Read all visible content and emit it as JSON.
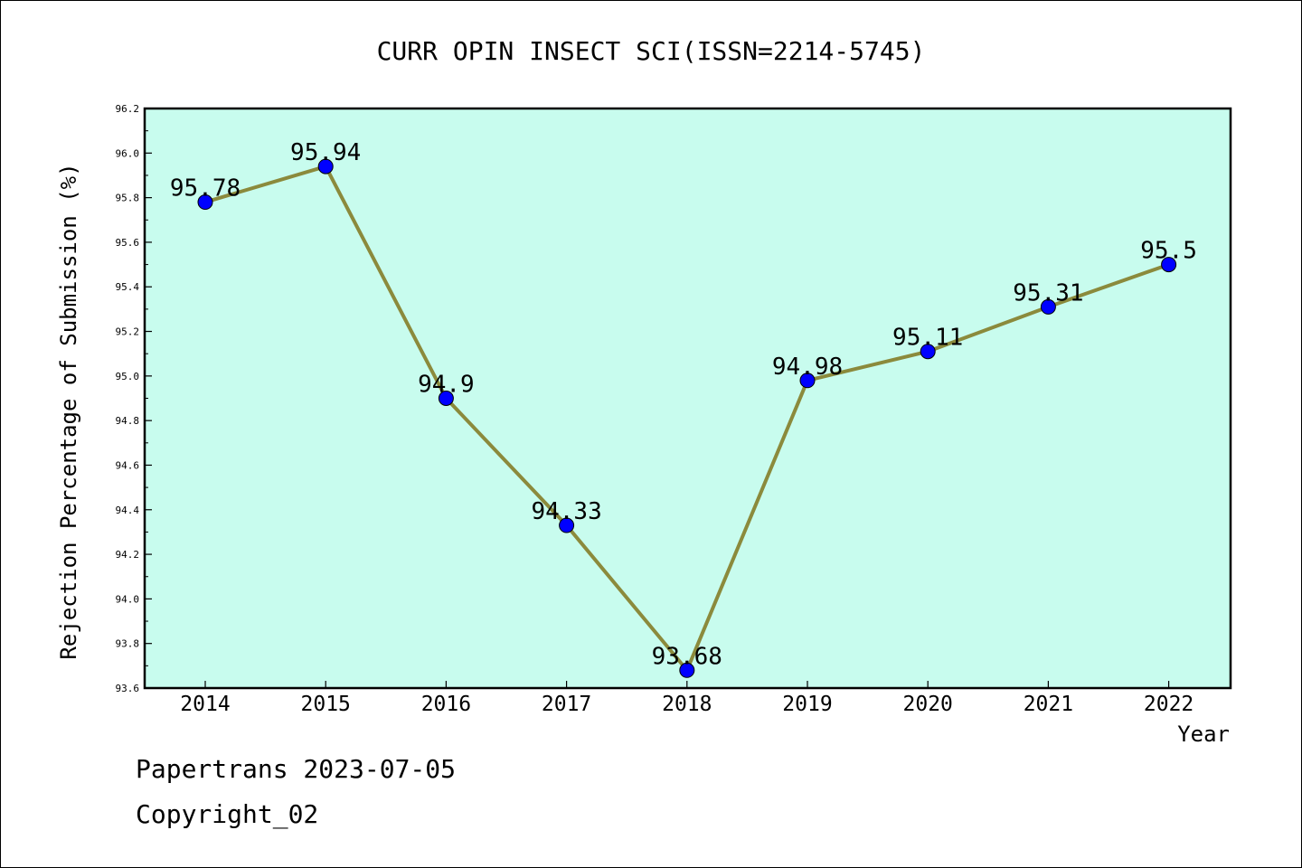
{
  "chart_data": {
    "type": "line",
    "title": "CURR OPIN INSECT SCI(ISSN=2214-5745)",
    "xlabel": "Year",
    "ylabel": "Rejection Percentage of Submission (%)",
    "categories": [
      "2014",
      "2015",
      "2016",
      "2017",
      "2018",
      "2019",
      "2020",
      "2021",
      "2022"
    ],
    "series": [
      {
        "values": [
          95.78,
          95.94,
          94.9,
          94.33,
          93.68,
          94.98,
          95.11,
          95.31,
          95.5
        ],
        "labels": [
          "95.78",
          "95.94",
          "94.9",
          "94.33",
          "93.68",
          "94.98",
          "95.11",
          "95.31",
          "95.5"
        ],
        "line_color": "#8b8a3c",
        "marker_color": "#0000ff"
      }
    ],
    "ylim": [
      93.6,
      96.2
    ],
    "yticks": [
      "93.6",
      "93.8",
      "94.0",
      "94.2",
      "94.4",
      "94.6",
      "94.8",
      "95.0",
      "95.2",
      "95.4",
      "95.6",
      "95.8",
      "96.0",
      "96.2"
    ],
    "plot_background": "#c8fcee",
    "grid": false,
    "legend": "none"
  },
  "footer": {
    "line1": "Papertrans 2023-07-05",
    "line2": "Copyright_02"
  }
}
